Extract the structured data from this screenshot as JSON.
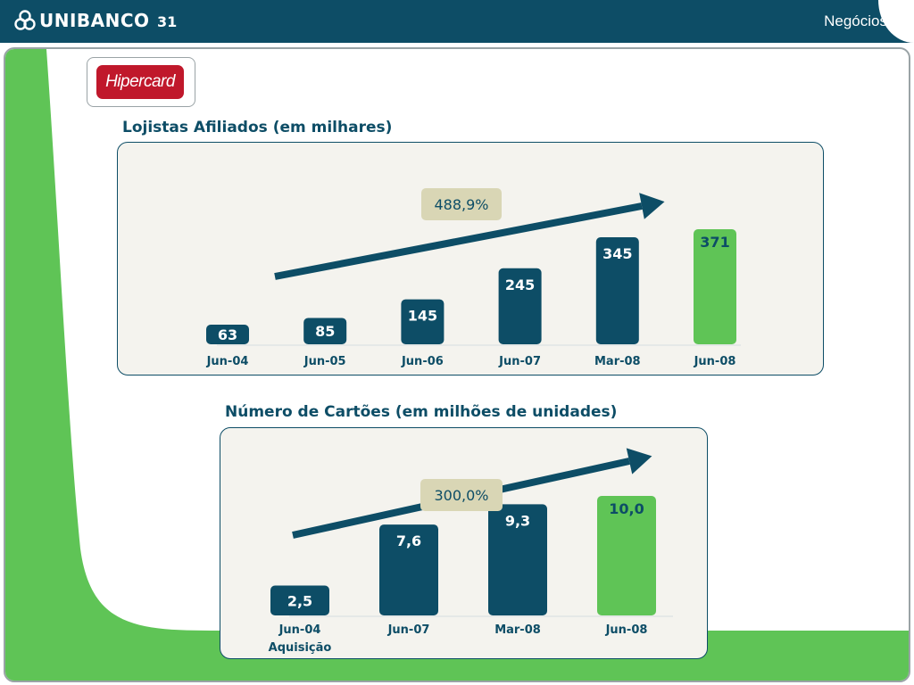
{
  "header": {
    "brand": "UNIBANCO",
    "page_number": "31",
    "section": "Negócios"
  },
  "brand_logo": {
    "text": "Hipercard"
  },
  "colors": {
    "header": "#0d4d66",
    "bar_dark": "#0d4d66",
    "bar_highlight": "#5fc456",
    "growth_badge": "#d9d6b5",
    "panel": "#f4f3ee",
    "side_green": "#5fc456",
    "brand_red": "#c0182b"
  },
  "chart_data": [
    {
      "type": "bar",
      "title": "Lojistas Afiliados (em milhares)",
      "categories": [
        "Jun-04",
        "Jun-05",
        "Jun-06",
        "Jun-07",
        "Mar-08",
        "Jun-08"
      ],
      "values": [
        63,
        85,
        145,
        245,
        345,
        371
      ],
      "value_labels": [
        "63",
        "85",
        "145",
        "245",
        "345",
        "371"
      ],
      "highlight_index": 5,
      "growth_label": "488,9%",
      "ylim": [
        0,
        371
      ]
    },
    {
      "type": "bar",
      "title": "Número de Cartões (em milhões de unidades)",
      "categories": [
        "Jun-04",
        "Jun-07",
        "Mar-08",
        "Jun-08"
      ],
      "category_sublabels": [
        "Aquisição",
        "",
        "",
        ""
      ],
      "values": [
        2.5,
        7.6,
        9.3,
        10.0
      ],
      "value_labels": [
        "2,5",
        "7,6",
        "9,3",
        "10,0"
      ],
      "highlight_index": 3,
      "growth_label": "300,0%",
      "ylim": [
        0,
        10
      ]
    }
  ]
}
